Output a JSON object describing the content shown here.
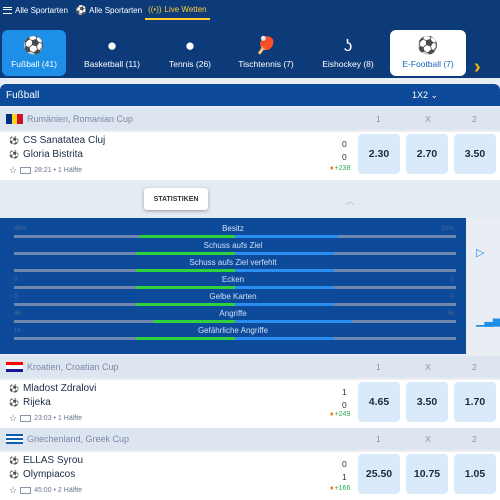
{
  "topbar": {
    "items": [
      {
        "label": "Alle Sportarten"
      },
      {
        "label": "Alle Sportarten"
      },
      {
        "label": "Live Wetten"
      }
    ]
  },
  "sport_tabs": [
    {
      "label": "Fußball (41)",
      "icon": "soccer-ball-icon"
    },
    {
      "label": "Basketball (11)",
      "icon": "basketball-icon"
    },
    {
      "label": "Tennis (26)",
      "icon": "tennis-ball-icon"
    },
    {
      "label": "Tischtennis (7)",
      "icon": "table-tennis-icon"
    },
    {
      "label": "Eishockey (8)",
      "icon": "hockey-stick-icon"
    },
    {
      "label": "E-Football (7)",
      "icon": "e-football-icon"
    }
  ],
  "category": {
    "title": "Fußball",
    "market": "1X2"
  },
  "columns": [
    "1",
    "X",
    "2"
  ],
  "leagues": [
    {
      "name": "Rumänien, Romanian Cup",
      "event": {
        "home": "CS Sanatatea Cluj",
        "away": "Gloria Bistrita",
        "home_score": "0",
        "away_score": "0",
        "time": "28:21 • 1 Hälfte",
        "markets": "+238",
        "odds": [
          "2.30",
          "2.70",
          "3.50"
        ]
      }
    },
    {
      "name": "Kroatien, Croatian Cup",
      "event": {
        "home": "Mladost Zdralovi",
        "away": "Rijeka",
        "home_score": "1",
        "away_score": "0",
        "time": "23:03 • 1 Hälfte",
        "markets": "+249",
        "odds": [
          "4.65",
          "3.50",
          "1.70"
        ]
      }
    },
    {
      "name": "Griechenland, Greek Cup",
      "event": {
        "home": "ELLAS Syrou",
        "away": "Olympiacos",
        "home_score": "0",
        "away_score": "1",
        "time": "45:00 • 2 Hälfte",
        "markets": "+166",
        "odds": [
          "25.50",
          "10.75",
          "1.05"
        ]
      }
    }
  ],
  "statistics": {
    "button": "STATISTIKEN",
    "rows": [
      {
        "label": "Besitz",
        "left": "48%",
        "right": "52%",
        "home_share": 0.48
      },
      {
        "label": "Schuss aufs Ziel",
        "left": "",
        "right": "",
        "home_share": 0.5
      },
      {
        "label": "Schuss aufs Ziel verfehlt",
        "left": "",
        "right": "",
        "home_share": 0.5
      },
      {
        "label": "Ecken",
        "left": "0",
        "right": "0",
        "home_share": 0.5
      },
      {
        "label": "Gelbe Karten",
        "left": "0",
        "right": "0",
        "home_share": 0.5
      },
      {
        "label": "Angriffe",
        "left": "46",
        "right": "66",
        "home_share": 0.41
      },
      {
        "label": "Gefährliche Angriffe",
        "left": "14",
        "right": "",
        "home_share": 0.5
      }
    ]
  },
  "colors": {
    "header_blue": "#0d3b7a",
    "accent_blue": "#1e8fe6",
    "odds_bg": "#d9ebfb",
    "home_bar": "#2fd13c",
    "away_bar": "#2a8ef0",
    "live_yellow": "#ffcc33"
  }
}
